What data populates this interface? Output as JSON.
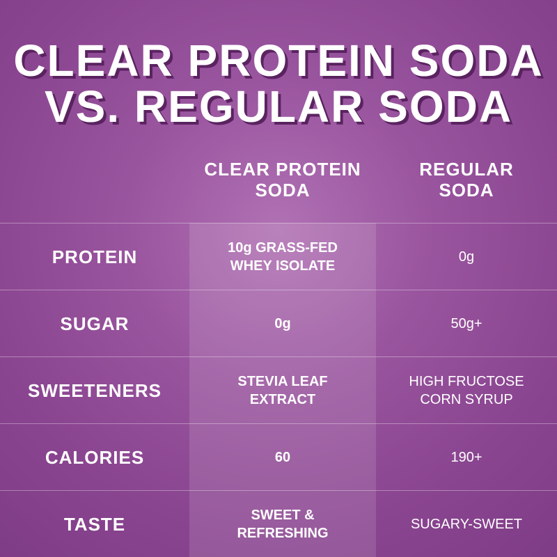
{
  "title": [
    "CLEAR PROTEIN SODA",
    "VS. REGULAR SODA"
  ],
  "table": {
    "columns": [
      "CLEAR PROTEIN SODA",
      "REGULAR SODA"
    ],
    "rows": [
      [
        "PROTEIN",
        "10g GRASS-FED WHEY ISOLATE",
        "0g"
      ],
      [
        "SUGAR",
        "0g",
        "50g+"
      ],
      [
        "SWEETENERS",
        "STEVIA LEAF EXTRACT",
        "HIGH FRUCTOSE CORN SYRUP"
      ],
      [
        "CALORIES",
        "60",
        "190+"
      ],
      [
        "TASTE",
        "SWEET & REFRESHING",
        "SUGARY-SWEET"
      ]
    ]
  }
}
